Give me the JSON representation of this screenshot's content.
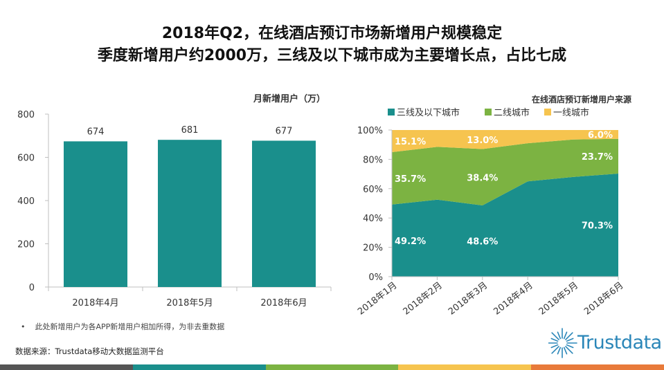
{
  "page": {
    "title_line1": "2018年Q2，在线酒店预订市场新增用户规模稳定",
    "title_line2": "季度新增用户约2000万，三线及以下城市成为主要增长点，占比七成",
    "footnote_bullet": "•",
    "footnote": "此处新增用户为各APP新增用户相加所得，为非去重数据",
    "source": "数据来源：Trustdata移动大数据监测平台",
    "logo_text": "Trustdata",
    "bottom_bar_colors": [
      "#555555",
      "#1a8f8c",
      "#7cb342",
      "#f6c44f",
      "#e87a3a"
    ]
  },
  "chart_data": [
    {
      "type": "bar",
      "title": "月新增用户（万）",
      "categories": [
        "2018年4月",
        "2018年5月",
        "2018年6月"
      ],
      "values": [
        674,
        681,
        677
      ],
      "data_labels": [
        "674",
        "681",
        "677"
      ],
      "ylim": [
        0,
        800
      ],
      "yticks": [
        0,
        200,
        400,
        600,
        800
      ],
      "ytick_labels": [
        "0",
        "200",
        "400",
        "600",
        "800"
      ],
      "color": "#1a8f8c",
      "grid": false
    },
    {
      "type": "area",
      "stacked": true,
      "title": "在线酒店预订新增用户来源",
      "legend_position": "top-left",
      "categories": [
        "2018年1月",
        "2018年2月",
        "2018年3月",
        "2018年4月",
        "2018年5月",
        "2018年6月"
      ],
      "ylim": [
        0,
        100
      ],
      "yticks": [
        0,
        20,
        40,
        60,
        80,
        100
      ],
      "ytick_labels": [
        "0%",
        "20%",
        "40%",
        "60%",
        "80%",
        "100%"
      ],
      "series": [
        {
          "name": "三线及以下城市",
          "color": "#1a8f8c",
          "values": [
            49.2,
            52.5,
            48.6,
            65.0,
            68.0,
            70.3
          ]
        },
        {
          "name": "二线城市",
          "color": "#7cb342",
          "values": [
            35.7,
            36.0,
            38.4,
            26.0,
            25.5,
            23.7
          ]
        },
        {
          "name": "一线城市",
          "color": "#f6c44f",
          "values": [
            15.1,
            11.5,
            13.0,
            9.0,
            6.5,
            6.0
          ]
        }
      ],
      "labels": [
        {
          "series": 0,
          "index": 0,
          "text": "49.2%"
        },
        {
          "series": 0,
          "index": 2,
          "text": "48.6%"
        },
        {
          "series": 0,
          "index": 5,
          "text": "70.3%"
        },
        {
          "series": 1,
          "index": 0,
          "text": "35.7%"
        },
        {
          "series": 1,
          "index": 2,
          "text": "38.4%"
        },
        {
          "series": 1,
          "index": 5,
          "text": "23.7%"
        },
        {
          "series": 2,
          "index": 0,
          "text": "15.1%"
        },
        {
          "series": 2,
          "index": 2,
          "text": "13.0%"
        },
        {
          "series": 2,
          "index": 5,
          "text": "6.0%"
        }
      ]
    }
  ]
}
